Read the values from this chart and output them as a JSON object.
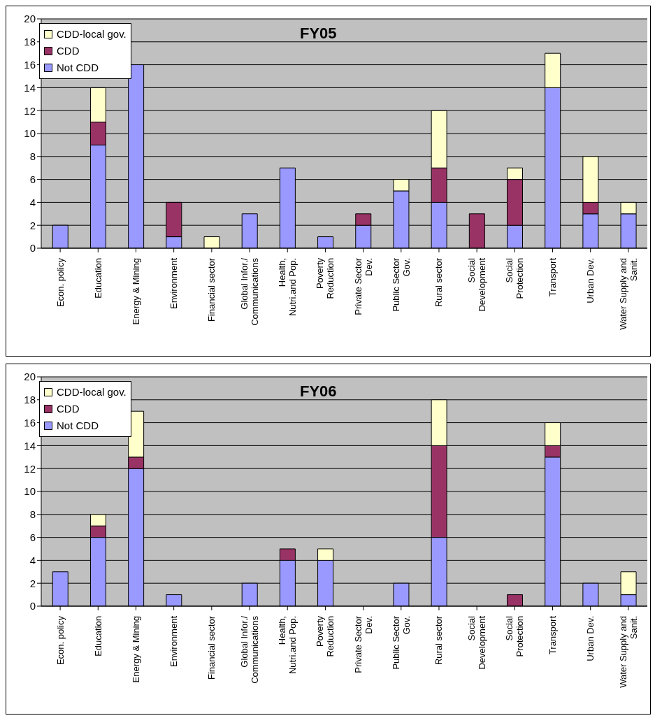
{
  "chart_data": [
    {
      "type": "bar",
      "title": "FY05",
      "stacked": true,
      "grid": "y",
      "legend": "top left",
      "ylim": [
        0,
        20
      ],
      "yticks": [
        0,
        2,
        4,
        6,
        8,
        10,
        12,
        14,
        16,
        18,
        20
      ],
      "categories": [
        "Econ. policy",
        "Education",
        "Energy & Mining",
        "Environment",
        "Financial sector",
        "Global Infor./ Communications",
        "Health, Nutri.and Pop.",
        "Poverty Reduction",
        "Private Sector Dev.",
        "Public Sector Gov.",
        "Rural sector",
        "Social Development",
        "Social Protection",
        "Transport",
        "Urban Dev.",
        "Water Supply and Sanit."
      ],
      "series": [
        {
          "name": "Not CDD",
          "color": "#9999ff",
          "values": [
            2,
            9,
            16,
            1,
            0,
            3,
            7,
            1,
            2,
            5,
            4,
            0,
            2,
            14,
            3,
            3
          ]
        },
        {
          "name": "CDD",
          "color": "#993366",
          "values": [
            0,
            2,
            0,
            3,
            0,
            0,
            0,
            0,
            1,
            0,
            3,
            3,
            4,
            0,
            1,
            0
          ]
        },
        {
          "name": "CDD-local gov.",
          "color": "#ffffcc",
          "values": [
            0,
            3,
            0,
            0,
            1,
            0,
            0,
            0,
            0,
            1,
            5,
            0,
            1,
            3,
            4,
            1
          ]
        }
      ]
    },
    {
      "type": "bar",
      "title": "FY06",
      "stacked": true,
      "grid": "y",
      "legend": "top left",
      "ylim": [
        0,
        20
      ],
      "yticks": [
        0,
        2,
        4,
        6,
        8,
        10,
        12,
        14,
        16,
        18,
        20
      ],
      "categories": [
        "Econ. policy",
        "Education",
        "Energy & Mining",
        "Environment",
        "Financial sector",
        "Global Infor./ Communications",
        "Health, Nutri.and Pop.",
        "Poverty Reduction",
        "Private Sector Dev.",
        "Public Sector Gov.",
        "Rural sector",
        "Social Development",
        "Social Protection",
        "Transport",
        "Urban Dev.",
        "Water Supply and Sanit."
      ],
      "series": [
        {
          "name": "Not CDD",
          "color": "#9999ff",
          "values": [
            3,
            6,
            12,
            1,
            0,
            2,
            4,
            4,
            0,
            2,
            6,
            0,
            0,
            13,
            2,
            1
          ]
        },
        {
          "name": "CDD",
          "color": "#993366",
          "values": [
            0,
            1,
            1,
            0,
            0,
            0,
            1,
            0,
            0,
            0,
            8,
            0,
            1,
            1,
            0,
            0
          ]
        },
        {
          "name": "CDD-local gov.",
          "color": "#ffffcc",
          "values": [
            0,
            1,
            4,
            0,
            0,
            0,
            0,
            1,
            0,
            0,
            4,
            0,
            0,
            2,
            0,
            2
          ]
        }
      ]
    }
  ]
}
